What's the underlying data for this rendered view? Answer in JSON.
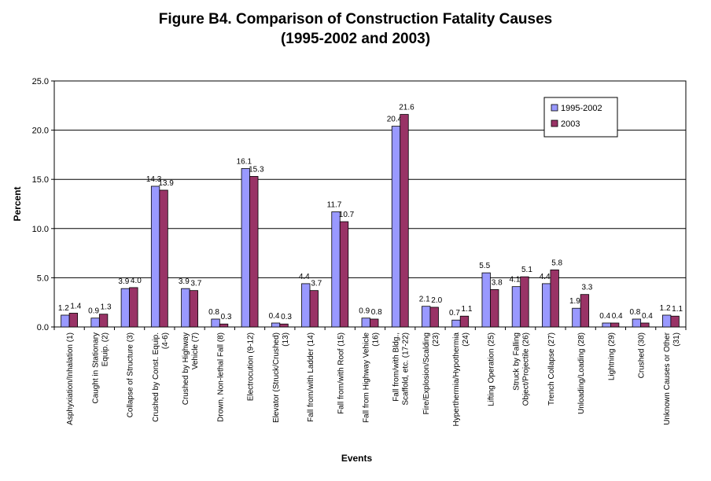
{
  "chart_data": {
    "type": "bar",
    "title_line1": "Figure B4.  Comparison of Construction Fatality Causes",
    "title_line2": "(1995-2002 and 2003)",
    "xlabel": "Events",
    "ylabel": "Percent",
    "ylim": [
      0,
      25
    ],
    "yticks": [
      "0.0",
      "5.0",
      "10.0",
      "15.0",
      "20.0",
      "25.0"
    ],
    "grid": true,
    "legend_position": "top-right",
    "categories": [
      [
        "Asphyxiation/Inhalation (1)"
      ],
      [
        "Caught in Stationary",
        "Equip. (2)"
      ],
      [
        "Collapse of Structure (3)"
      ],
      [
        "Crushed by Const. Equip.",
        "(4-6)"
      ],
      [
        "Crushed by Highway",
        "Vehicle (7)"
      ],
      [
        "Drown, Non-lethal Fall (8)"
      ],
      [
        "Electrocution (9-12)"
      ],
      [
        "Elevator (Struck/Crushed)",
        "(13)"
      ],
      [
        "Fall from/with Ladder (14)"
      ],
      [
        "Fall from/with Roof (15)"
      ],
      [
        "Fall from Highway Vehicle",
        "(16)"
      ],
      [
        "Fall from/with Bldg.,",
        "Scaffold, etc. (17-22)"
      ],
      [
        "Fire/Explosion/Scalding",
        "(23)"
      ],
      [
        "Hyperthermia/Hypothermia",
        "(24)"
      ],
      [
        "Lifting Operation (25)"
      ],
      [
        "Struck by Falling",
        "Object/Projectile (26)"
      ],
      [
        "Trench Collapse (27)"
      ],
      [
        "Unloading/Loading (28)"
      ],
      [
        "Lightning (29)"
      ],
      [
        "Crushed (30)"
      ],
      [
        "Unknown Causes or Other",
        "(31)"
      ]
    ],
    "series": [
      {
        "name": "1995-2002",
        "color": "#9999ff",
        "values": [
          1.2,
          0.9,
          3.9,
          14.3,
          3.9,
          0.8,
          16.1,
          0.4,
          4.4,
          11.7,
          0.9,
          20.4,
          2.1,
          0.7,
          5.5,
          4.1,
          4.4,
          1.9,
          0.4,
          0.8,
          1.2
        ],
        "labels": [
          "1.2",
          "0.9",
          "3.9",
          "14.3",
          "3.9",
          "0.8",
          "16.1",
          "0.4",
          "4.4",
          "11.7",
          "0.9",
          "20.4",
          "2.1",
          "0.7",
          "5.5",
          "4.1",
          "4.4",
          "1.9",
          "0.4",
          "0.8",
          "1.2"
        ]
      },
      {
        "name": "2003",
        "color": "#993366",
        "values": [
          1.4,
          1.3,
          4.0,
          13.9,
          3.7,
          0.3,
          15.3,
          0.3,
          3.7,
          10.7,
          0.8,
          21.6,
          2.0,
          1.1,
          3.8,
          5.1,
          5.8,
          3.3,
          0.4,
          0.4,
          1.1
        ],
        "labels": [
          "1.4",
          "1.3",
          "4.0",
          "13.9",
          "3.7",
          "0.3",
          "15.3",
          "0.3",
          "3.7",
          "10.7",
          "0.8",
          "21.6",
          "2.0",
          "1.1",
          "3.8",
          "5.1",
          "5.8",
          "3.3",
          "0.4",
          "0.4",
          "1.1"
        ]
      }
    ]
  }
}
